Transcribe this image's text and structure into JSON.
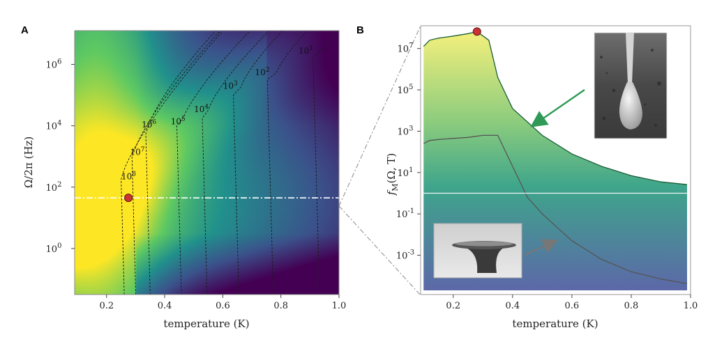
{
  "chart_data": [
    {
      "panel": "A",
      "type": "heatmap",
      "xlabel": "temperature (K)",
      "ylabel": "Ω/2π (Hz)",
      "xlim": [
        0.09,
        1.0
      ],
      "ylim_log10": [
        -1.5,
        7.1
      ],
      "x_ticks": [
        "0.2",
        "0.4",
        "0.6",
        "0.8",
        "1.0"
      ],
      "x_tick_values": [
        0.2,
        0.4,
        0.6,
        0.8,
        1.0
      ],
      "y_ticks": [
        {
          "base": "10",
          "exp": "0",
          "log10": 0
        },
        {
          "base": "10",
          "exp": "2",
          "log10": 2
        },
        {
          "base": "10",
          "exp": "4",
          "log10": 4
        },
        {
          "base": "10",
          "exp": "6",
          "log10": 6
        }
      ],
      "colormap": [
        "#440154",
        "#3b528b",
        "#21918c",
        "#5ec962",
        "#fde725"
      ],
      "contour_levels": [
        {
          "label_base": "10",
          "label_exp": "8",
          "T": 0.27,
          "logOmega": 2.25
        },
        {
          "label_base": "10",
          "label_exp": "7",
          "T": 0.3,
          "logOmega": 3.05
        },
        {
          "label_base": "10",
          "label_exp": "6",
          "T": 0.34,
          "logOmega": 3.95
        },
        {
          "label_base": "10",
          "label_exp": "5",
          "T": 0.44,
          "logOmega": 4.05
        },
        {
          "label_base": "10",
          "label_exp": "4",
          "T": 0.52,
          "logOmega": 4.45
        },
        {
          "label_base": "10",
          "label_exp": "3",
          "T": 0.62,
          "logOmega": 5.2
        },
        {
          "label_base": "10",
          "label_exp": "2",
          "T": 0.73,
          "logOmega": 5.65
        },
        {
          "label_base": "10",
          "label_exp": "1",
          "T": 0.88,
          "logOmega": 6.35
        }
      ],
      "cut_line_logOmega": 1.65,
      "marker": {
        "T": 0.275,
        "logOmega": 1.65,
        "color": "#cc3333"
      }
    },
    {
      "panel": "B",
      "type": "area",
      "xlabel": "temperature (K)",
      "ylabel": "f_M(Ω, T)",
      "xlim": [
        0.09,
        1.0
      ],
      "ylim_log10": [
        -4.9,
        8.1
      ],
      "x_ticks": [
        "0.2",
        "0.4",
        "0.6",
        "0.8",
        "1.0"
      ],
      "x_tick_values": [
        0.2,
        0.4,
        0.6,
        0.8,
        1.0
      ],
      "y_ticks": [
        {
          "base": "10",
          "exp": "-3",
          "log10": -3
        },
        {
          "base": "10",
          "exp": "-1",
          "log10": -1
        },
        {
          "base": "10",
          "exp": "1",
          "log10": 1
        },
        {
          "base": "10",
          "exp": "3",
          "log10": 3
        },
        {
          "base": "10",
          "exp": "5",
          "log10": 5
        },
        {
          "base": "10",
          "exp": "7",
          "log10": 7
        }
      ],
      "series": [
        {
          "x": [
            0.1,
            0.12,
            0.15,
            0.2,
            0.25,
            0.28,
            0.32,
            0.35,
            0.4,
            0.5,
            0.6,
            0.7,
            0.8,
            0.9,
            1.0
          ],
          "log10_y": [
            7.1,
            7.4,
            7.5,
            7.6,
            7.72,
            7.82,
            7.4,
            5.6,
            4.1,
            2.8,
            1.9,
            1.3,
            0.85,
            0.55,
            0.4
          ],
          "color": "#1a5e3a"
        },
        {
          "x": [
            0.1,
            0.12,
            0.15,
            0.2,
            0.25,
            0.3,
            0.35,
            0.4,
            0.45,
            0.5,
            0.6,
            0.7,
            0.8,
            0.9,
            1.0
          ],
          "log10_y": [
            2.4,
            2.55,
            2.6,
            2.65,
            2.7,
            2.8,
            2.8,
            1.3,
            -0.2,
            -1.0,
            -2.3,
            -3.2,
            -3.8,
            -4.15,
            -4.4
          ],
          "color": "#555555"
        }
      ],
      "threshold_log10": 0,
      "marker": {
        "T": 0.28,
        "log10_y": 7.82,
        "color": "#cc3333"
      }
    }
  ],
  "panel_letters": [
    "A",
    "B"
  ]
}
